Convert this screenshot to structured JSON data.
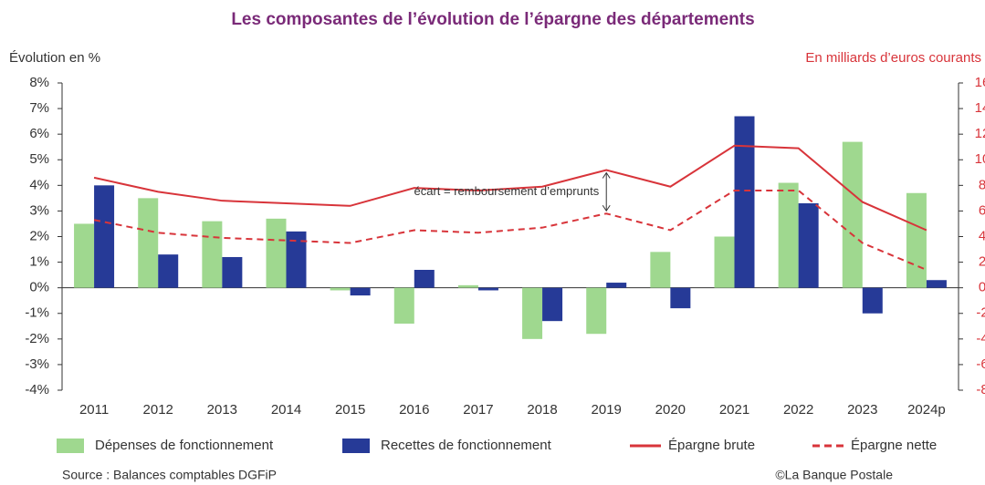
{
  "chart_data": {
    "type": "bar",
    "title": "Les composantes de l’évolution de l’épargne des départements",
    "y_label": "Évolution en %",
    "y2_label": "En milliards d’euros courants",
    "annotation": "écart = remboursement d’emprunts",
    "source": "Source : Balances comptables DGFiP",
    "credit": "©La Banque Postale",
    "categories": [
      "2011",
      "2012",
      "2013",
      "2014",
      "2015",
      "2016",
      "2017",
      "2018",
      "2019",
      "2020",
      "2021",
      "2022",
      "2023",
      "2024p"
    ],
    "series": [
      {
        "name": "Dépenses de fonctionnement",
        "type": "bar",
        "color": "#9fd88f",
        "values": [
          2.5,
          3.5,
          2.6,
          2.7,
          -0.1,
          -1.4,
          0.1,
          -2.0,
          -1.8,
          1.4,
          2.0,
          4.1,
          5.7,
          3.7
        ]
      },
      {
        "name": "Recettes de fonctionnement",
        "type": "bar",
        "color": "#263a97",
        "values": [
          4.0,
          1.3,
          1.2,
          2.2,
          -0.3,
          0.7,
          -0.1,
          -1.3,
          0.2,
          -0.8,
          6.7,
          3.3,
          -1.0,
          0.3
        ]
      },
      {
        "name": "Épargne brute",
        "type": "line",
        "axis": "y2",
        "color": "#d8343a",
        "dashed": false,
        "values": [
          8.6,
          7.5,
          6.8,
          6.6,
          6.4,
          7.8,
          7.6,
          7.9,
          9.2,
          7.9,
          11.1,
          10.9,
          6.7,
          4.5
        ]
      },
      {
        "name": "Épargne nette",
        "type": "line",
        "axis": "y2",
        "color": "#d8343a",
        "dashed": true,
        "values": [
          5.3,
          4.3,
          3.9,
          3.7,
          3.5,
          4.5,
          4.3,
          4.7,
          5.8,
          4.5,
          7.6,
          7.6,
          3.5,
          1.4
        ]
      }
    ],
    "ylim": [
      -4,
      8
    ],
    "yticks": [
      {
        "value": -4,
        "label": "-4%"
      },
      {
        "value": -3,
        "label": "-3%"
      },
      {
        "value": -2,
        "label": "-2%"
      },
      {
        "value": -1,
        "label": "-1%"
      },
      {
        "value": 0,
        "label": "0%"
      },
      {
        "value": 1,
        "label": "1%"
      },
      {
        "value": 2,
        "label": "2%"
      },
      {
        "value": 3,
        "label": "3%"
      },
      {
        "value": 4,
        "label": "4%"
      },
      {
        "value": 5,
        "label": "5%"
      },
      {
        "value": 6,
        "label": "6%"
      },
      {
        "value": 7,
        "label": "7%"
      },
      {
        "value": 8,
        "label": "8%"
      }
    ],
    "y2lim": [
      -8,
      16
    ],
    "y2ticks": [
      -8,
      -6,
      -4,
      -2,
      0,
      2,
      4,
      6,
      8,
      10,
      12,
      14,
      16
    ],
    "annotation_category": 8,
    "grid": false
  }
}
